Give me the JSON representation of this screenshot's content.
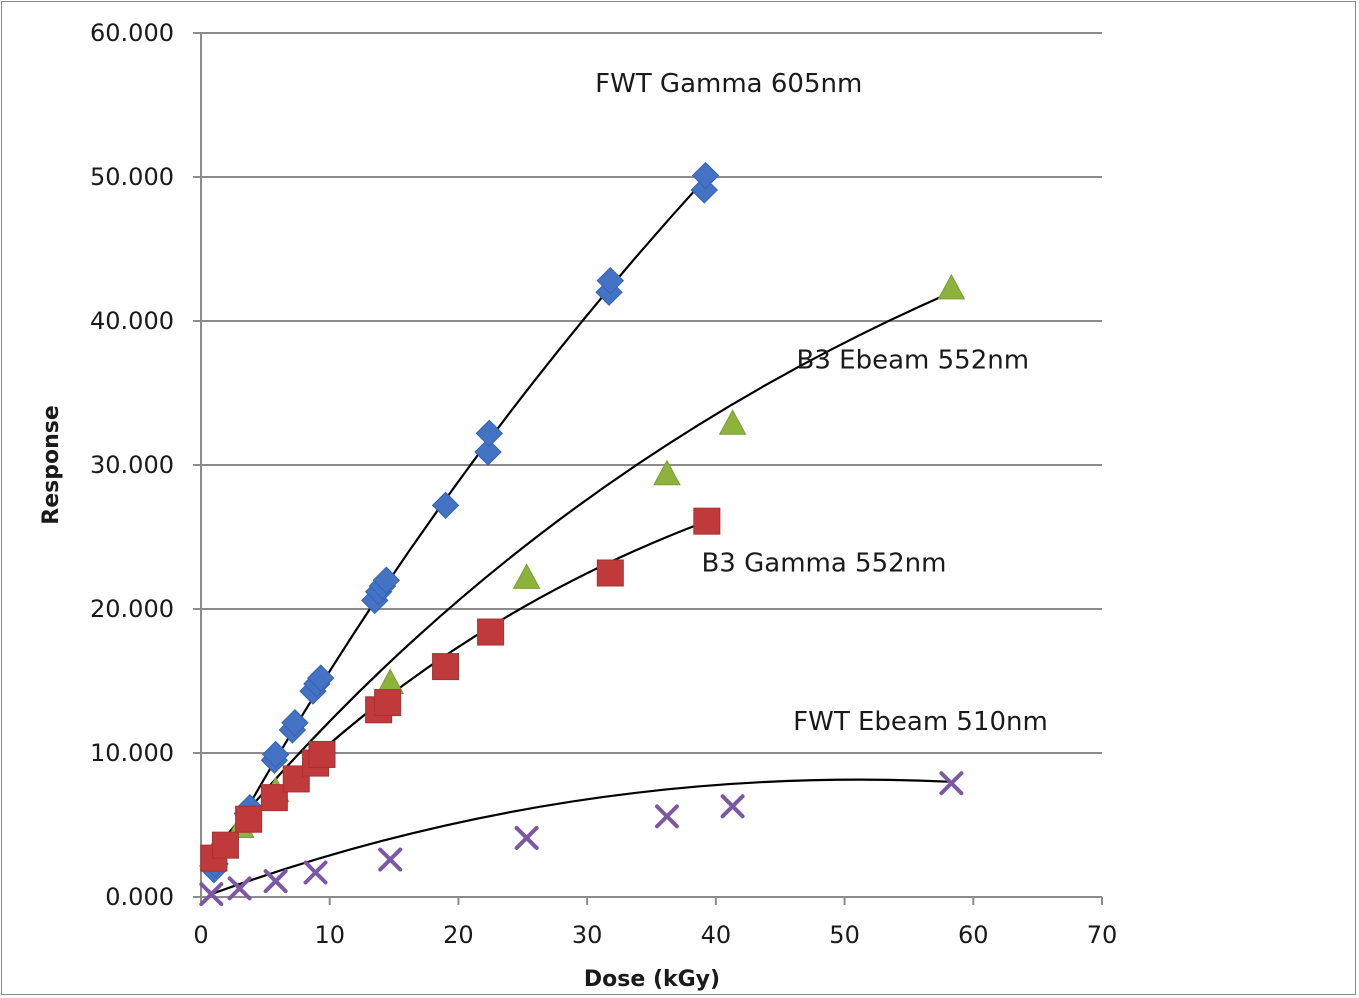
{
  "chart_data": {
    "type": "scatter",
    "title": "",
    "xlabel": "Dose (kGy)",
    "ylabel": "Response",
    "xlim": [
      0,
      70
    ],
    "ylim": [
      0,
      60
    ],
    "x_ticks": [
      "0",
      "10",
      "20",
      "30",
      "40",
      "50",
      "60",
      "70"
    ],
    "y_ticks": [
      "0.000",
      "10.000",
      "20.000",
      "30.000",
      "40.000",
      "50.000",
      "60.000"
    ],
    "grid": "horizontal",
    "legend": "none",
    "series": [
      {
        "name": "FWT Gamma 605nm",
        "marker": "diamond",
        "color": "#4472C4",
        "points": [
          [
            1.0,
            1.9
          ],
          [
            1.1,
            2.3
          ],
          [
            3.6,
            5.8
          ],
          [
            3.8,
            6.2
          ],
          [
            5.7,
            9.5
          ],
          [
            5.8,
            9.9
          ],
          [
            7.1,
            11.6
          ],
          [
            7.3,
            12.1
          ],
          [
            8.7,
            14.3
          ],
          [
            9.0,
            14.8
          ],
          [
            9.3,
            15.2
          ],
          [
            13.5,
            20.6
          ],
          [
            13.8,
            21.2
          ],
          [
            14.1,
            21.6
          ],
          [
            14.4,
            22.0
          ],
          [
            19.0,
            27.2
          ],
          [
            22.3,
            30.9
          ],
          [
            22.4,
            32.2
          ],
          [
            31.7,
            42.0
          ],
          [
            31.8,
            42.8
          ],
          [
            39.1,
            49.1
          ],
          [
            39.2,
            50.1
          ]
        ],
        "trendline": [
          [
            1.0,
            2.0
          ],
          [
            39.0,
            49.7
          ]
        ]
      },
      {
        "name": "B3 Ebeam 552nm",
        "marker": "triangle",
        "color": "#8DB33D",
        "points": [
          [
            0.9,
            2.9
          ],
          [
            3.1,
            4.9
          ],
          [
            5.8,
            7.4
          ],
          [
            9.0,
            9.8
          ],
          [
            14.7,
            14.9
          ],
          [
            25.3,
            22.2
          ],
          [
            36.2,
            29.4
          ],
          [
            41.3,
            32.9
          ],
          [
            58.3,
            42.3
          ]
        ],
        "trendline": [
          [
            0.9,
            3.1
          ],
          [
            58.3,
            42.0
          ]
        ]
      },
      {
        "name": "B3 Gamma 552nm",
        "marker": "square",
        "color": "#C0393B",
        "points": [
          [
            1.0,
            2.7
          ],
          [
            1.9,
            3.6
          ],
          [
            3.7,
            5.4
          ],
          [
            5.7,
            6.9
          ],
          [
            7.4,
            8.2
          ],
          [
            8.9,
            9.3
          ],
          [
            9.4,
            9.9
          ],
          [
            13.8,
            13.0
          ],
          [
            14.5,
            13.5
          ],
          [
            19.0,
            16.0
          ],
          [
            22.5,
            18.4
          ],
          [
            31.8,
            22.5
          ],
          [
            39.3,
            26.1
          ]
        ],
        "trendline": [
          [
            1.0,
            2.8
          ],
          [
            39.0,
            26.0
          ]
        ]
      },
      {
        "name": "FWT Ebeam 510nm",
        "marker": "x",
        "color": "#7B58A6",
        "points": [
          [
            0.8,
            0.2
          ],
          [
            3.0,
            0.6
          ],
          [
            5.8,
            1.1
          ],
          [
            8.9,
            1.7
          ],
          [
            14.7,
            2.6
          ],
          [
            25.3,
            4.1
          ],
          [
            36.2,
            5.6
          ],
          [
            41.3,
            6.3
          ],
          [
            58.3,
            7.9
          ]
        ],
        "trendline": [
          [
            0.8,
            0.2
          ],
          [
            58.3,
            8.0
          ]
        ]
      }
    ]
  }
}
